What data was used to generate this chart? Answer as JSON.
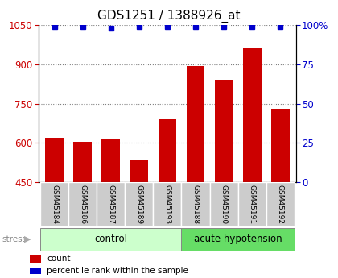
{
  "title": "GDS1251 / 1388926_at",
  "samples": [
    "GSM45184",
    "GSM45186",
    "GSM45187",
    "GSM45189",
    "GSM45193",
    "GSM45188",
    "GSM45190",
    "GSM45191",
    "GSM45192"
  ],
  "counts": [
    620,
    605,
    612,
    535,
    690,
    893,
    840,
    960,
    730
  ],
  "percentiles": [
    99,
    99,
    98,
    99,
    99,
    99,
    99,
    99,
    99
  ],
  "ymin": 450,
  "ymax": 1050,
  "yticks": [
    450,
    600,
    750,
    900,
    1050
  ],
  "right_yticks": [
    0,
    25,
    50,
    75,
    100
  ],
  "bar_color": "#cc0000",
  "dot_color": "#0000cc",
  "control_label": "control",
  "acute_label": "acute hypotension",
  "stress_label": "stress",
  "n_control": 5,
  "n_acute": 4,
  "legend_count": "count",
  "legend_pct": "percentile rank within the sample",
  "control_bg": "#ccffcc",
  "acute_bg": "#66dd66",
  "xlabel_bg": "#cccccc",
  "title_fontsize": 11
}
